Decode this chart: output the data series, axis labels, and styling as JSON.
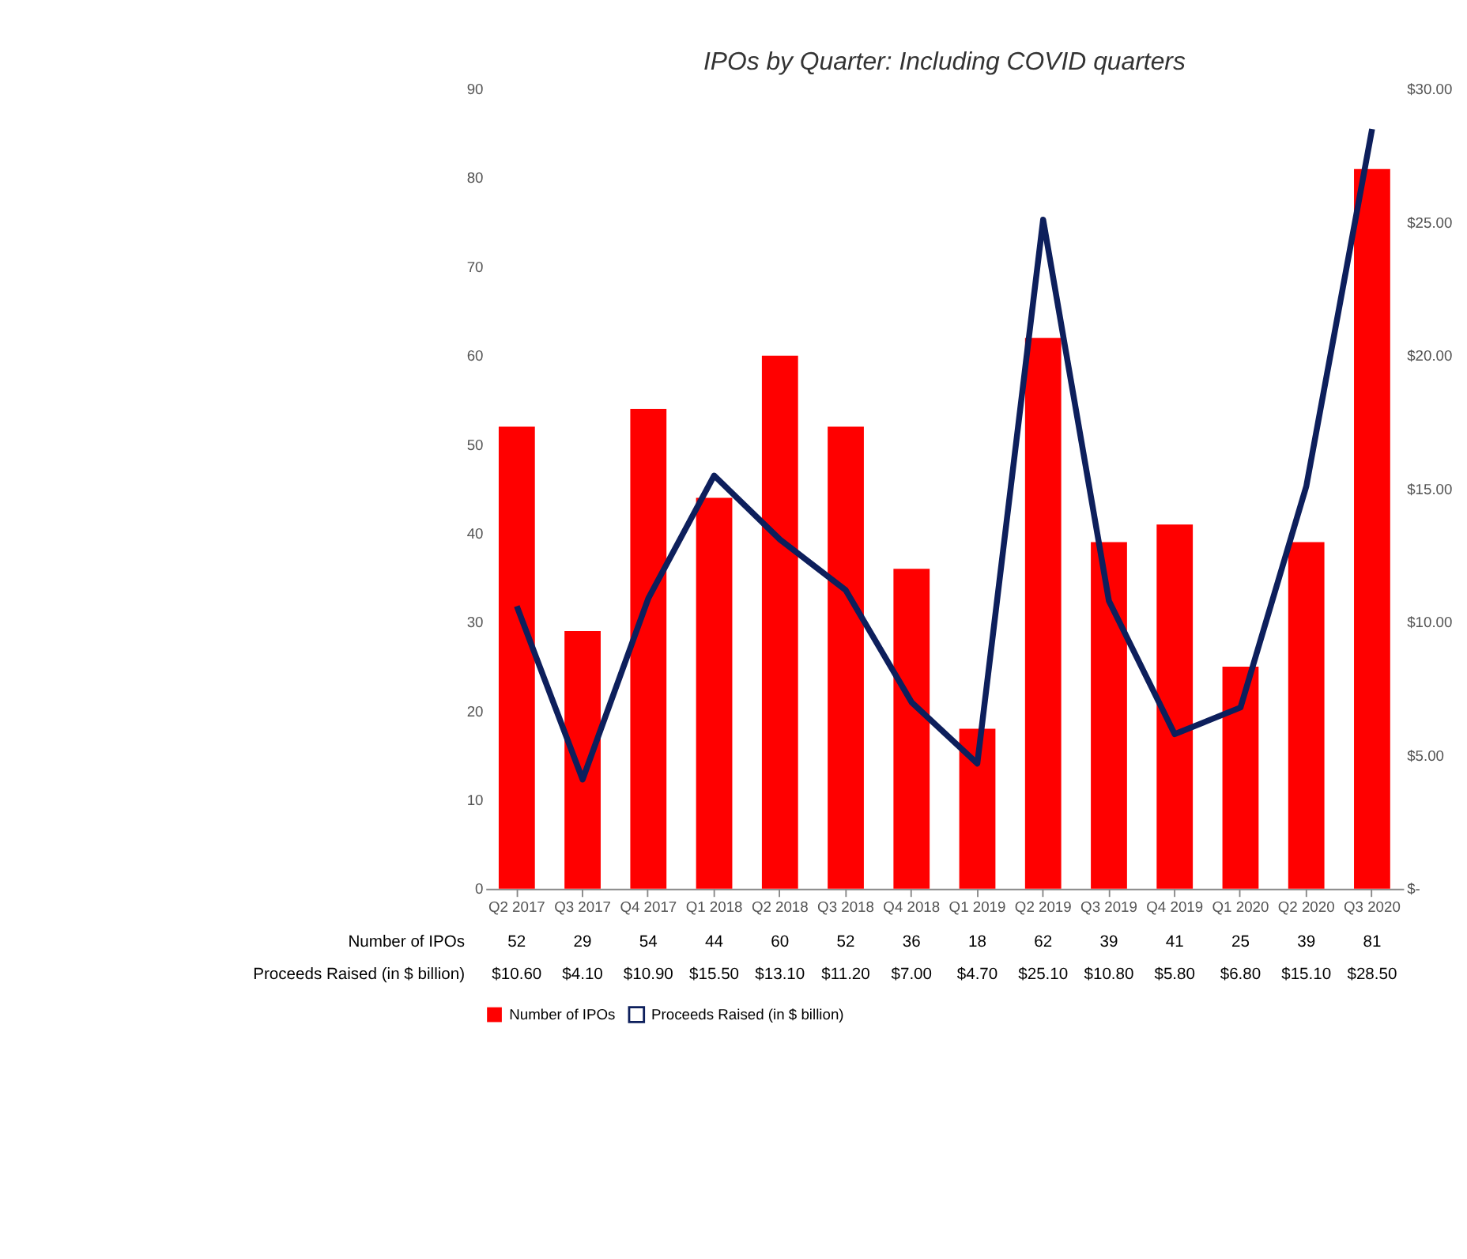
{
  "chart_data": {
    "type": "bar",
    "title": "IPOs by Quarter: Including COVID quarters",
    "categories": [
      "Q2 2017",
      "Q3 2017",
      "Q4 2017",
      "Q1 2018",
      "Q2 2018",
      "Q3 2018",
      "Q4 2018",
      "Q1 2019",
      "Q2 2019",
      "Q3 2019",
      "Q4 2019",
      "Q1 2020",
      "Q2 2020",
      "Q3 2020"
    ],
    "series": [
      {
        "name": "Number of IPOs",
        "color": "#ff0000",
        "values": [
          52,
          29,
          54,
          44,
          60,
          52,
          36,
          18,
          62,
          39,
          41,
          25,
          39,
          81
        ],
        "value_labels": [
          "52",
          "29",
          "54",
          "44",
          "60",
          "52",
          "36",
          "18",
          "62",
          "39",
          "41",
          "25",
          "39",
          "81"
        ]
      },
      {
        "name": "Proceeds Raised (in $ billion)",
        "type": "line",
        "axis": "y2",
        "color": "#0d1f5c",
        "values": [
          10.6,
          4.1,
          10.9,
          15.5,
          13.1,
          11.2,
          7.0,
          4.7,
          25.1,
          10.8,
          5.8,
          6.8,
          15.1,
          28.5
        ],
        "value_labels": [
          "$10.60",
          "$4.10",
          "$10.90",
          "$15.50",
          "$13.10",
          "$11.20",
          "$7.00",
          "$4.70",
          "$25.10",
          "$10.80",
          "$5.80",
          "$6.80",
          "$15.10",
          "$28.50"
        ]
      }
    ],
    "ylim": [
      0,
      90
    ],
    "yticks": [
      0,
      10,
      20,
      30,
      40,
      50,
      60,
      70,
      80,
      90
    ],
    "y2lim": [
      0,
      30
    ],
    "y2ticks": [
      {
        "value": 0,
        "label": "$-"
      },
      {
        "value": 5,
        "label": "$5.00"
      },
      {
        "value": 10,
        "label": "$10.00"
      },
      {
        "value": 15,
        "label": "$15.00"
      },
      {
        "value": 20,
        "label": "$20.00"
      },
      {
        "value": 25,
        "label": "$25.00"
      },
      {
        "value": 30,
        "label": "$30.00"
      }
    ],
    "grid": false,
    "legend": "bottom"
  }
}
